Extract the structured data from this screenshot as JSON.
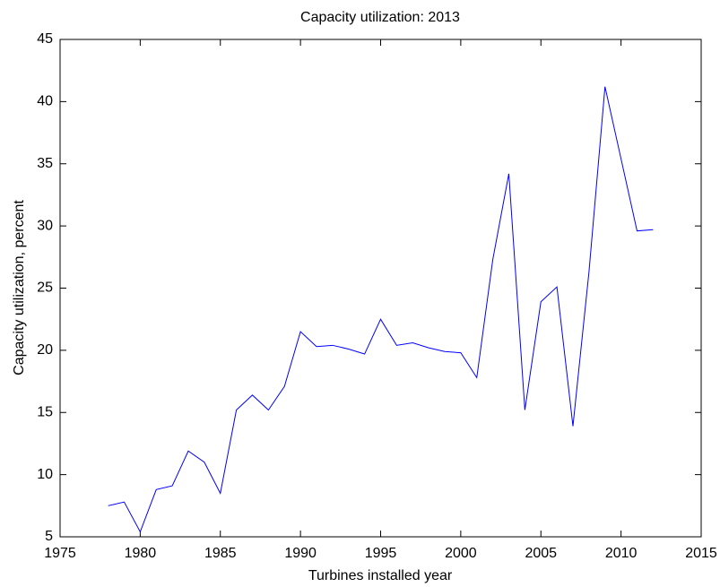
{
  "chart_data": {
    "type": "line",
    "title": "Capacity utilization: 2013",
    "x_label": "Turbines installed year",
    "y_label": "Capacity utilization, percent",
    "x": [
      1978,
      1979,
      1980,
      1981,
      1982,
      1983,
      1984,
      1985,
      1986,
      1987,
      1988,
      1989,
      1990,
      1991,
      1992,
      1993,
      1994,
      1995,
      1996,
      1997,
      1998,
      1999,
      2000,
      2001,
      2002,
      2003,
      2004,
      2005,
      2006,
      2007,
      2008,
      2009,
      2010,
      2011,
      2012
    ],
    "series": [
      {
        "name": "Capacity utilization",
        "color": "#0000ff",
        "values": [
          7.5,
          7.8,
          5.4,
          8.8,
          9.1,
          11.9,
          11.0,
          8.5,
          15.2,
          16.4,
          15.2,
          17.1,
          21.5,
          20.3,
          20.4,
          20.1,
          19.7,
          22.5,
          20.4,
          20.6,
          20.2,
          19.9,
          19.8,
          17.8,
          27.3,
          34.2,
          15.2,
          23.9,
          25.1,
          13.9,
          26.3,
          41.2,
          35.4,
          29.6,
          29.7
        ]
      }
    ],
    "xlim": [
      1975,
      2015
    ],
    "xticks": [
      1975,
      1980,
      1985,
      1990,
      1995,
      2000,
      2005,
      2010,
      2015
    ],
    "ylim": [
      5,
      45
    ],
    "yticks": [
      5,
      10,
      15,
      20,
      25,
      30,
      35,
      40,
      45
    ],
    "grid": false
  }
}
